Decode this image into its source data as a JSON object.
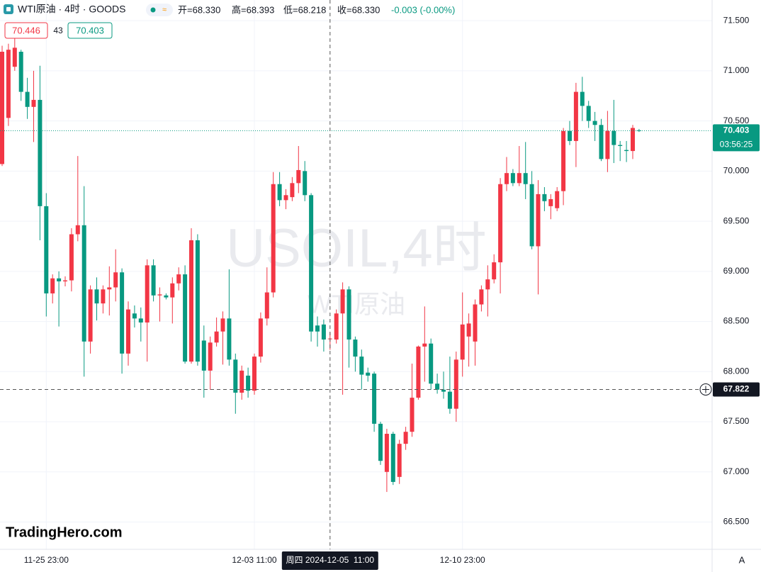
{
  "header": {
    "symbol": "WTI原油 · 4时 · GOODS",
    "open": "开=68.330",
    "high": "高=68.393",
    "low": "低=68.218",
    "close": "收=68.330",
    "change": "-0.003 (-0.00%)",
    "bid": 70.446,
    "spread": 43,
    "ask": 70.403
  },
  "watermark": {
    "symbol": "USOIL,4时",
    "name": "WTI原油"
  },
  "logo": "TradingHero.com",
  "axis_mode": "A",
  "chart_data": {
    "type": "candlestick",
    "categories": [
      null,
      null,
      null,
      null,
      null,
      null,
      null,
      "11-25 23:00",
      null,
      null,
      null,
      null,
      null,
      null,
      null,
      null,
      null,
      null,
      null,
      null,
      null,
      null,
      null,
      null,
      null,
      null,
      null,
      null,
      null,
      null,
      null,
      null,
      null,
      null,
      null,
      null,
      null,
      null,
      null,
      null,
      "12-03 11:00",
      null,
      null,
      null,
      null,
      null,
      null,
      null,
      null,
      null,
      null,
      null,
      "周四 2024-12-05  11:00",
      null,
      null,
      null,
      null,
      null,
      null,
      null,
      null,
      null,
      null,
      null,
      null,
      null,
      null,
      null,
      null,
      null,
      null,
      null,
      null,
      "12-10 23:00",
      null,
      null,
      null,
      null,
      null,
      null,
      null,
      null,
      null,
      null,
      null,
      null,
      null,
      null,
      null,
      null,
      null,
      null,
      null,
      null,
      null,
      null,
      null,
      null,
      null,
      null,
      null,
      null
    ],
    "open": [
      70.07,
      70.53,
      71.04,
      71.19,
      70.79,
      70.64,
      70.71,
      69.65,
      68.78,
      68.93,
      68.9,
      68.91,
      69.37,
      69.46,
      68.3,
      68.82,
      68.68,
      68.82,
      68.84,
      68.99,
      68.18,
      68.58,
      68.53,
      68.49,
      69.06,
      68.76,
      68.76,
      68.74,
      68.88,
      68.97,
      68.1,
      69.31,
      68.31,
      68.01,
      68.29,
      68.4,
      68.53,
      68.12,
      67.79,
      67.96,
      67.81,
      68.15,
      68.53,
      68.79,
      69.87,
      69.71,
      69.74,
      69.88,
      70.0,
      69.76,
      68.46,
      68.47,
      68.33,
      68.32,
      68.58,
      68.82,
      68.32,
      68.15,
      67.99,
      67.98,
      67.48,
      67.0,
      67.38,
      66.95,
      67.28,
      67.4,
      67.74,
      68.25,
      68.28,
      67.88,
      67.82,
      67.8,
      67.63,
      68.12,
      68.35,
      68.3,
      68.67,
      68.82,
      68.92,
      69.09,
      69.87,
      69.98,
      69.88,
      69.98,
      69.87,
      69.25,
      69.77,
      69.65,
      69.63,
      69.8,
      70.4,
      70.3,
      70.79,
      70.65,
      70.5,
      70.46,
      70.12,
      70.4,
      70.26,
      70.21,
      70.2,
      70.406
    ],
    "high": [
      71.25,
      71.27,
      71.33,
      71.21,
      70.93,
      71.0,
      71.05,
      69.78,
      68.97,
      69.0,
      68.95,
      69.43,
      70.15,
      69.85,
      68.86,
      68.94,
      68.86,
      69.05,
      69.22,
      69.03,
      68.7,
      68.66,
      68.64,
      69.12,
      69.12,
      68.84,
      68.78,
      68.94,
      69.04,
      69.06,
      69.43,
      69.37,
      68.46,
      68.35,
      68.54,
      68.6,
      69.02,
      68.18,
      68.06,
      68.04,
      68.18,
      68.59,
      69.04,
      69.99,
      69.99,
      69.82,
      69.94,
      70.25,
      70.1,
      69.78,
      68.55,
      68.52,
      68.393,
      68.62,
      68.89,
      68.85,
      68.35,
      68.22,
      68.04,
      68.0,
      67.5,
      67.43,
      67.4,
      67.32,
      67.45,
      68.08,
      68.26,
      68.65,
      68.33,
      67.98,
      68.0,
      68.15,
      68.2,
      68.79,
      68.58,
      68.72,
      68.86,
      69.06,
      69.17,
      69.93,
      70.14,
      70.02,
      70.25,
      70.29,
      70.0,
      69.91,
      69.84,
      69.77,
      69.84,
      70.43,
      70.5,
      70.88,
      70.94,
      70.7,
      70.59,
      70.52,
      70.6,
      70.71,
      70.3,
      70.3,
      70.46,
      70.42
    ],
    "low": [
      70.05,
      70.45,
      71.0,
      70.7,
      70.52,
      70.29,
      69.31,
      68.55,
      68.68,
      68.45,
      68.85,
      68.8,
      69.3,
      67.95,
      68.18,
      68.51,
      68.58,
      68.56,
      68.7,
      67.98,
      68.06,
      68.44,
      68.3,
      68.1,
      68.7,
      68.5,
      68.72,
      68.48,
      68.81,
      68.08,
      68.08,
      68.06,
      67.74,
      67.82,
      68.25,
      68.07,
      68.06,
      67.58,
      67.72,
      67.74,
      67.77,
      68.09,
      68.46,
      68.74,
      69.65,
      69.62,
      69.7,
      69.78,
      69.7,
      68.3,
      68.25,
      68.2,
      68.218,
      68.28,
      67.77,
      68.04,
      68.0,
      67.82,
      67.9,
      67.4,
      67.07,
      66.8,
      66.87,
      66.88,
      67.22,
      67.35,
      67.72,
      67.9,
      67.82,
      67.78,
      67.73,
      67.58,
      67.5,
      67.95,
      68.05,
      68.06,
      68.6,
      68.55,
      68.88,
      68.78,
      69.8,
      69.85,
      69.85,
      69.72,
      69.22,
      68.77,
      69.6,
      69.52,
      69.6,
      69.66,
      70.26,
      70.04,
      70.5,
      70.43,
      70.3,
      70.1,
      69.99,
      70.08,
      70.1,
      70.09,
      70.12,
      70.39
    ],
    "close": [
      71.19,
      71.21,
      71.23,
      70.79,
      70.64,
      70.71,
      69.65,
      68.78,
      68.93,
      68.9,
      68.91,
      69.37,
      69.46,
      68.3,
      68.82,
      68.68,
      68.82,
      68.84,
      68.99,
      68.18,
      68.62,
      68.53,
      68.49,
      69.06,
      68.76,
      68.77,
      68.74,
      68.88,
      68.97,
      68.1,
      69.31,
      68.1,
      68.01,
      68.29,
      68.4,
      68.53,
      68.12,
      67.79,
      68.01,
      67.81,
      68.15,
      68.53,
      68.79,
      69.87,
      69.71,
      69.76,
      69.88,
      70.01,
      69.76,
      68.4,
      68.4,
      68.32,
      68.33,
      68.58,
      68.82,
      68.32,
      68.15,
      67.97,
      67.96,
      67.48,
      67.11,
      67.38,
      66.9,
      67.28,
      67.4,
      67.74,
      68.25,
      68.28,
      67.88,
      67.82,
      67.8,
      67.63,
      68.12,
      68.47,
      68.48,
      68.67,
      68.82,
      68.92,
      69.09,
      69.87,
      69.98,
      69.88,
      69.98,
      69.87,
      69.25,
      69.77,
      69.7,
      69.72,
      69.8,
      70.4,
      70.3,
      70.79,
      70.65,
      70.5,
      70.46,
      70.12,
      70.4,
      70.26,
      70.25,
      70.2,
      70.43,
      70.403
    ],
    "up_color": "#f23645",
    "down_color": "#089981",
    "ylim": [
      66.228,
      71.706
    ],
    "yticks": [
      {
        "value": 66.5,
        "label": "66.500"
      },
      {
        "value": 67,
        "label": "67.000"
      },
      {
        "value": 67.5,
        "label": "67.500"
      },
      {
        "value": 68,
        "label": "68.000"
      },
      {
        "value": 68.5,
        "label": "68.500"
      },
      {
        "value": 69,
        "label": "69.000"
      },
      {
        "value": 69.5,
        "label": "69.500"
      },
      {
        "value": 70,
        "label": "70.000"
      },
      {
        "value": 70.5,
        "label": "70.500"
      },
      {
        "value": 71,
        "label": "71.000"
      },
      {
        "value": 71.5,
        "label": "71.500"
      }
    ],
    "grid": true,
    "last_price": 70.403,
    "countdown": "03:56:25",
    "crosshair_price": 67.822
  }
}
